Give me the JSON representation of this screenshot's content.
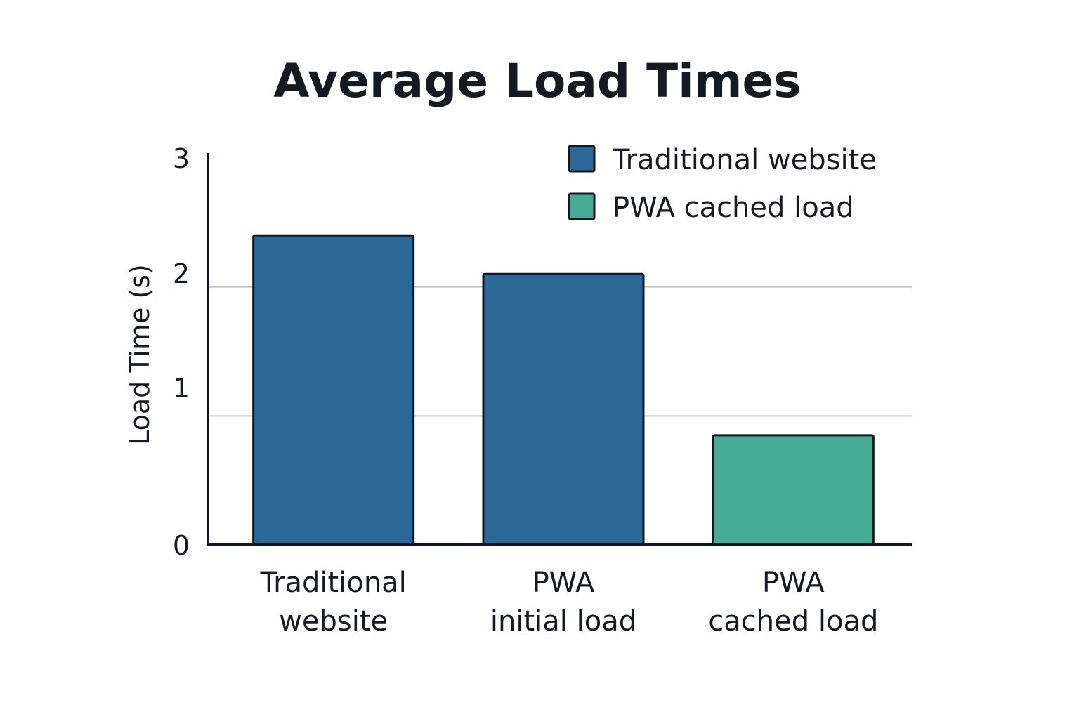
{
  "chart_data": {
    "type": "bar",
    "title": "Average Load Times",
    "xlabel": "",
    "ylabel": "Load Time (s)",
    "ylim": [
      0,
      3
    ],
    "yticks": [
      "0",
      "1",
      "2",
      "3"
    ],
    "grid": true,
    "legend_position": "top-right",
    "categories": [
      [
        "Traditional",
        "website"
      ],
      [
        "PWA",
        "initial load"
      ],
      [
        "PWA",
        "cached load"
      ]
    ],
    "values": [
      2.4,
      2.1,
      0.85
    ],
    "bar_series": [
      "Traditional website",
      "Traditional website",
      "PWA cached load"
    ],
    "legend": [
      {
        "label": "Traditional website",
        "color": "#2b6898"
      },
      {
        "label": "PWA cached load",
        "color": "#45ab94"
      }
    ]
  }
}
